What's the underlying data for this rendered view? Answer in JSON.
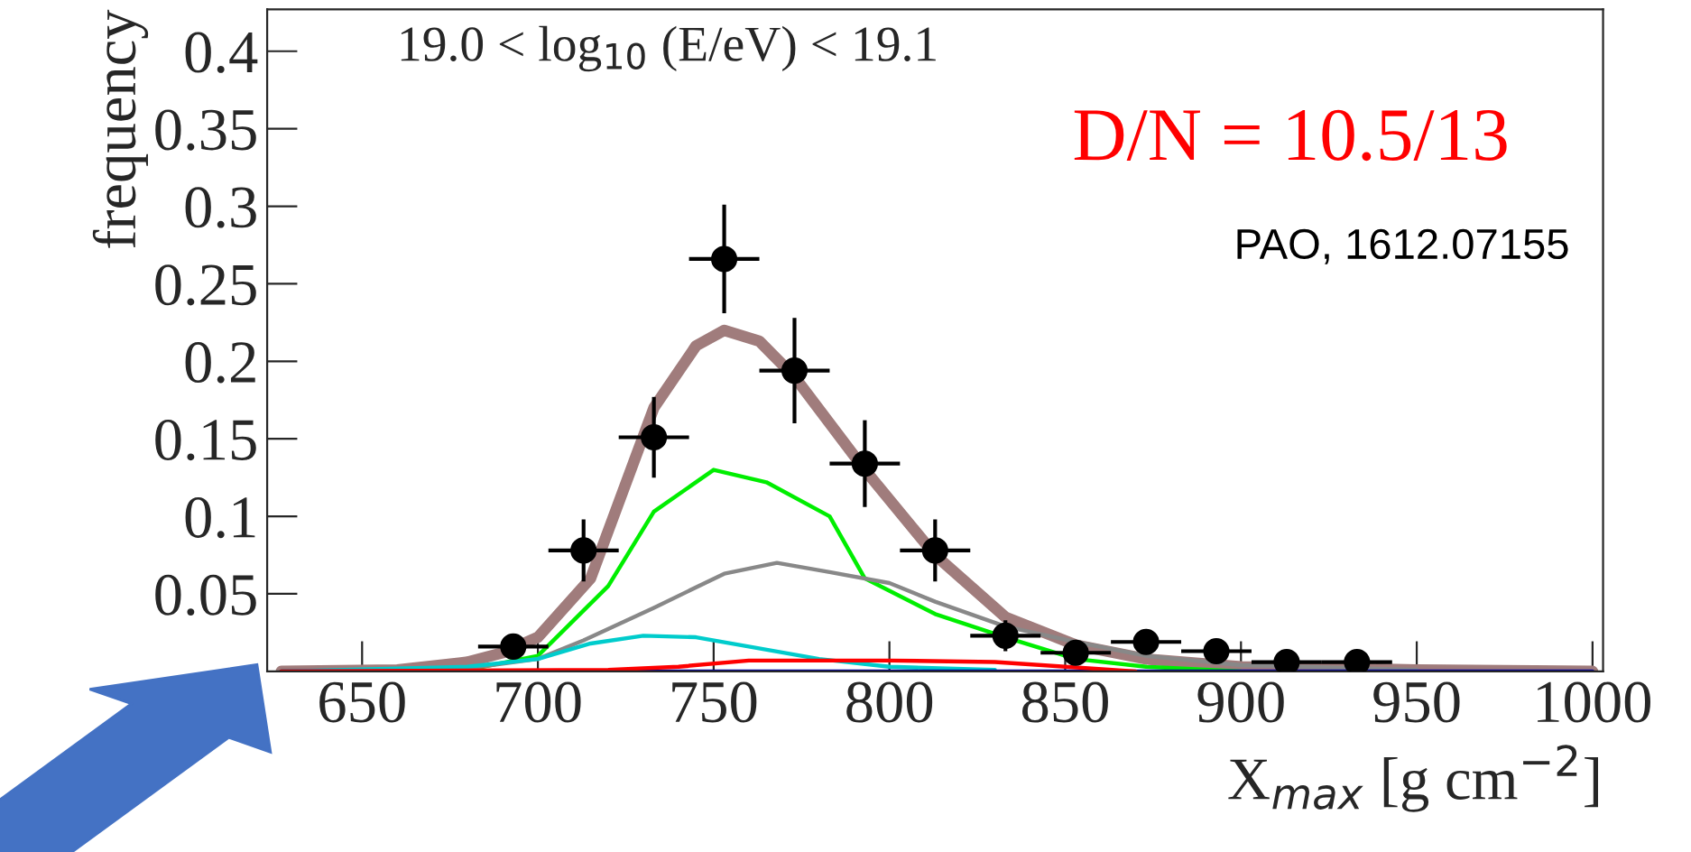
{
  "chart_data": {
    "type": "line",
    "title": "19.0 < log$_{10}$ (E/eV) < 19.1",
    "xlabel": "X$_{max}$ [g cm$^{−2}$]",
    "ylabel": "frequency",
    "annotations": [
      "D/N = 10.5/13",
      "PAO, 1612.07155"
    ],
    "xlim": [
      623,
      1003
    ],
    "xticks": [
      650,
      700,
      750,
      800,
      850,
      900,
      950,
      1000
    ],
    "ylim": [
      0,
      0.427
    ],
    "yticks": [
      0.05,
      0.1,
      0.15,
      0.2,
      0.25,
      0.3,
      0.35,
      0.4
    ],
    "grid": false,
    "legend": false,
    "series": [
      {
        "color": "#a07c7c",
        "x": [
          627,
          660,
          680,
          690,
          700,
          715,
          733,
          745,
          753,
          763,
          773,
          793,
          813,
          833,
          853,
          873,
          900,
          950,
          1000
        ],
        "values": [
          0,
          0.001,
          0.006,
          0.012,
          0.022,
          0.06,
          0.17,
          0.21,
          0.22,
          0.213,
          0.19,
          0.13,
          0.075,
          0.035,
          0.017,
          0.008,
          0.003,
          0.001,
          0
        ]
      },
      {
        "color": "#00ee00",
        "x": [
          627,
          680,
          700,
          720,
          733,
          750,
          765,
          783,
          793,
          813,
          833,
          853,
          873,
          900
        ],
        "values": [
          0,
          0.001,
          0.01,
          0.055,
          0.103,
          0.13,
          0.122,
          0.1,
          0.06,
          0.037,
          0.022,
          0.008,
          0.003,
          0
        ]
      },
      {
        "color": "#888888",
        "x": [
          627,
          680,
          700,
          713,
          733,
          753,
          768,
          783,
          800,
          813,
          833,
          853,
          873,
          900,
          950
        ],
        "values": [
          0,
          0.002,
          0.008,
          0.02,
          0.041,
          0.063,
          0.07,
          0.064,
          0.057,
          0.045,
          0.029,
          0.019,
          0.01,
          0.004,
          0.001
        ]
      },
      {
        "color": "#00cccc",
        "x": [
          627,
          680,
          700,
          715,
          730,
          745,
          760,
          780,
          800,
          830
        ],
        "values": [
          0,
          0.003,
          0.008,
          0.018,
          0.023,
          0.022,
          0.016,
          0.008,
          0.003,
          0.001
        ]
      },
      {
        "color": "#0000aa",
        "x": [
          627,
          1000
        ],
        "values": [
          0,
          0
        ]
      },
      {
        "color": "#ff0000",
        "x": [
          627,
          720,
          740,
          760,
          800,
          830,
          870
        ],
        "values": [
          0,
          0.001,
          0.003,
          0.007,
          0.007,
          0.006,
          0
        ]
      },
      {
        "type": "scatter",
        "color": "#000000",
        "marker": "circle",
        "x": [
          693,
          713,
          733,
          753,
          773,
          793,
          813,
          833,
          853,
          873,
          893,
          913,
          933
        ],
        "values": [
          0.016,
          0.078,
          0.151,
          0.266,
          0.194,
          0.134,
          0.078,
          0.023,
          0.012,
          0.019,
          0.013,
          0.006,
          0.006
        ],
        "errors": [
          0.008,
          0.02,
          0.026,
          0.035,
          0.034,
          0.028,
          0.02,
          0.01,
          0.005,
          0.008,
          0.005,
          0.004,
          0.004
        ],
        "xerrors": [
          10,
          10,
          10,
          10,
          10,
          10,
          10,
          10,
          10,
          10,
          10,
          10,
          10
        ]
      }
    ]
  }
}
